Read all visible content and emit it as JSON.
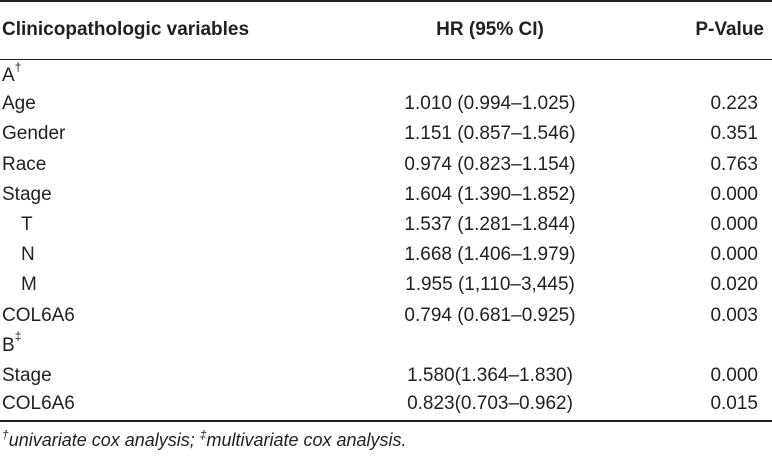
{
  "table": {
    "headers": {
      "variable": "Clinicopathologic variables",
      "hr": "HR (95% CI)",
      "pvalue": "P-Value"
    },
    "section_a": {
      "label": "A",
      "mark": "†"
    },
    "section_b": {
      "label": "B",
      "mark": "‡"
    },
    "rows_a": [
      {
        "variable": "Age",
        "hr": "1.010 (0.994–1.025)",
        "pvalue": "0.223"
      },
      {
        "variable": "Gender",
        "hr": "1.151 (0.857–1.546)",
        "pvalue": "0.351"
      },
      {
        "variable": "Race",
        "hr": "0.974 (0.823–1.154)",
        "pvalue": "0.763"
      },
      {
        "variable": "Stage",
        "hr": "1.604 (1.390–1.852)",
        "pvalue": "0.000"
      },
      {
        "variable": "T",
        "hr": "1.537 (1.281–1.844)",
        "pvalue": "0.000"
      },
      {
        "variable": "N",
        "hr": "1.668 (1.406–1.979)",
        "pvalue": "0.000"
      },
      {
        "variable": "M",
        "hr": "1.955 (1,110–3,445)",
        "pvalue": "0.020"
      },
      {
        "variable": "COL6A6",
        "hr": "0.794 (0.681–0.925)",
        "pvalue": "0.003"
      }
    ],
    "rows_b": [
      {
        "variable": "Stage",
        "hr": "1.580(1.364–1.830)",
        "pvalue": "0.000"
      },
      {
        "variable": "COL6A6",
        "hr": "0.823(0.703–0.962)",
        "pvalue": "0.015"
      }
    ]
  },
  "footnote": {
    "mark_1": "†",
    "text_1": "univariate cox analysis; ",
    "mark_2": "‡",
    "text_2": "multivariate cox analysis."
  }
}
